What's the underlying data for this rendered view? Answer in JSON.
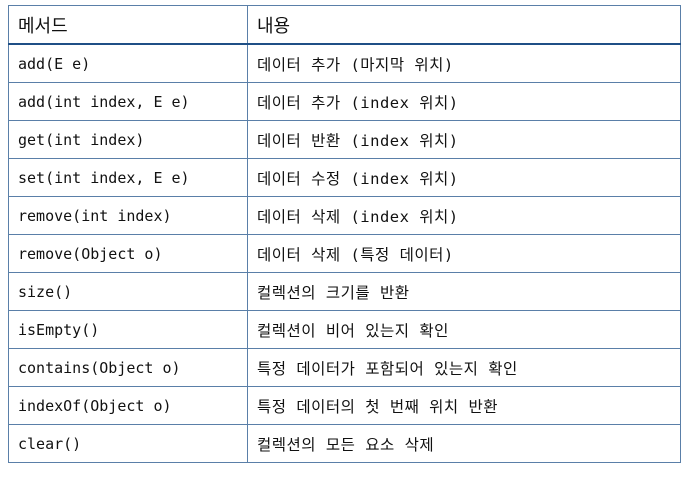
{
  "table": {
    "headers": [
      "메서드",
      "내용"
    ],
    "rows": [
      {
        "method": "add(E e)",
        "desc": "데이터 추가 (마지막 위치)"
      },
      {
        "method": "add(int index, E e)",
        "desc": "데이터 추가 (index 위치)"
      },
      {
        "method": "get(int index)",
        "desc": "데이터 반환 (index 위치)"
      },
      {
        "method": "set(int index, E e)",
        "desc": "데이터 수정 (index 위치)"
      },
      {
        "method": "remove(int index)",
        "desc": "데이터 삭제 (index 위치)"
      },
      {
        "method": "remove(Object o)",
        "desc": "데이터 삭제 (특정 데이터)"
      },
      {
        "method": "size()",
        "desc": "컬렉션의 크기를 반환"
      },
      {
        "method": "isEmpty()",
        "desc": "컬렉션이 비어 있는지 확인"
      },
      {
        "method": "contains(Object o)",
        "desc": "특정 데이터가 포함되어 있는지 확인"
      },
      {
        "method": "indexOf(Object o)",
        "desc": "특정 데이터의 첫 번째 위치 반환"
      },
      {
        "method": "clear()",
        "desc": "컬렉션의 모든 요소 삭제"
      }
    ]
  }
}
